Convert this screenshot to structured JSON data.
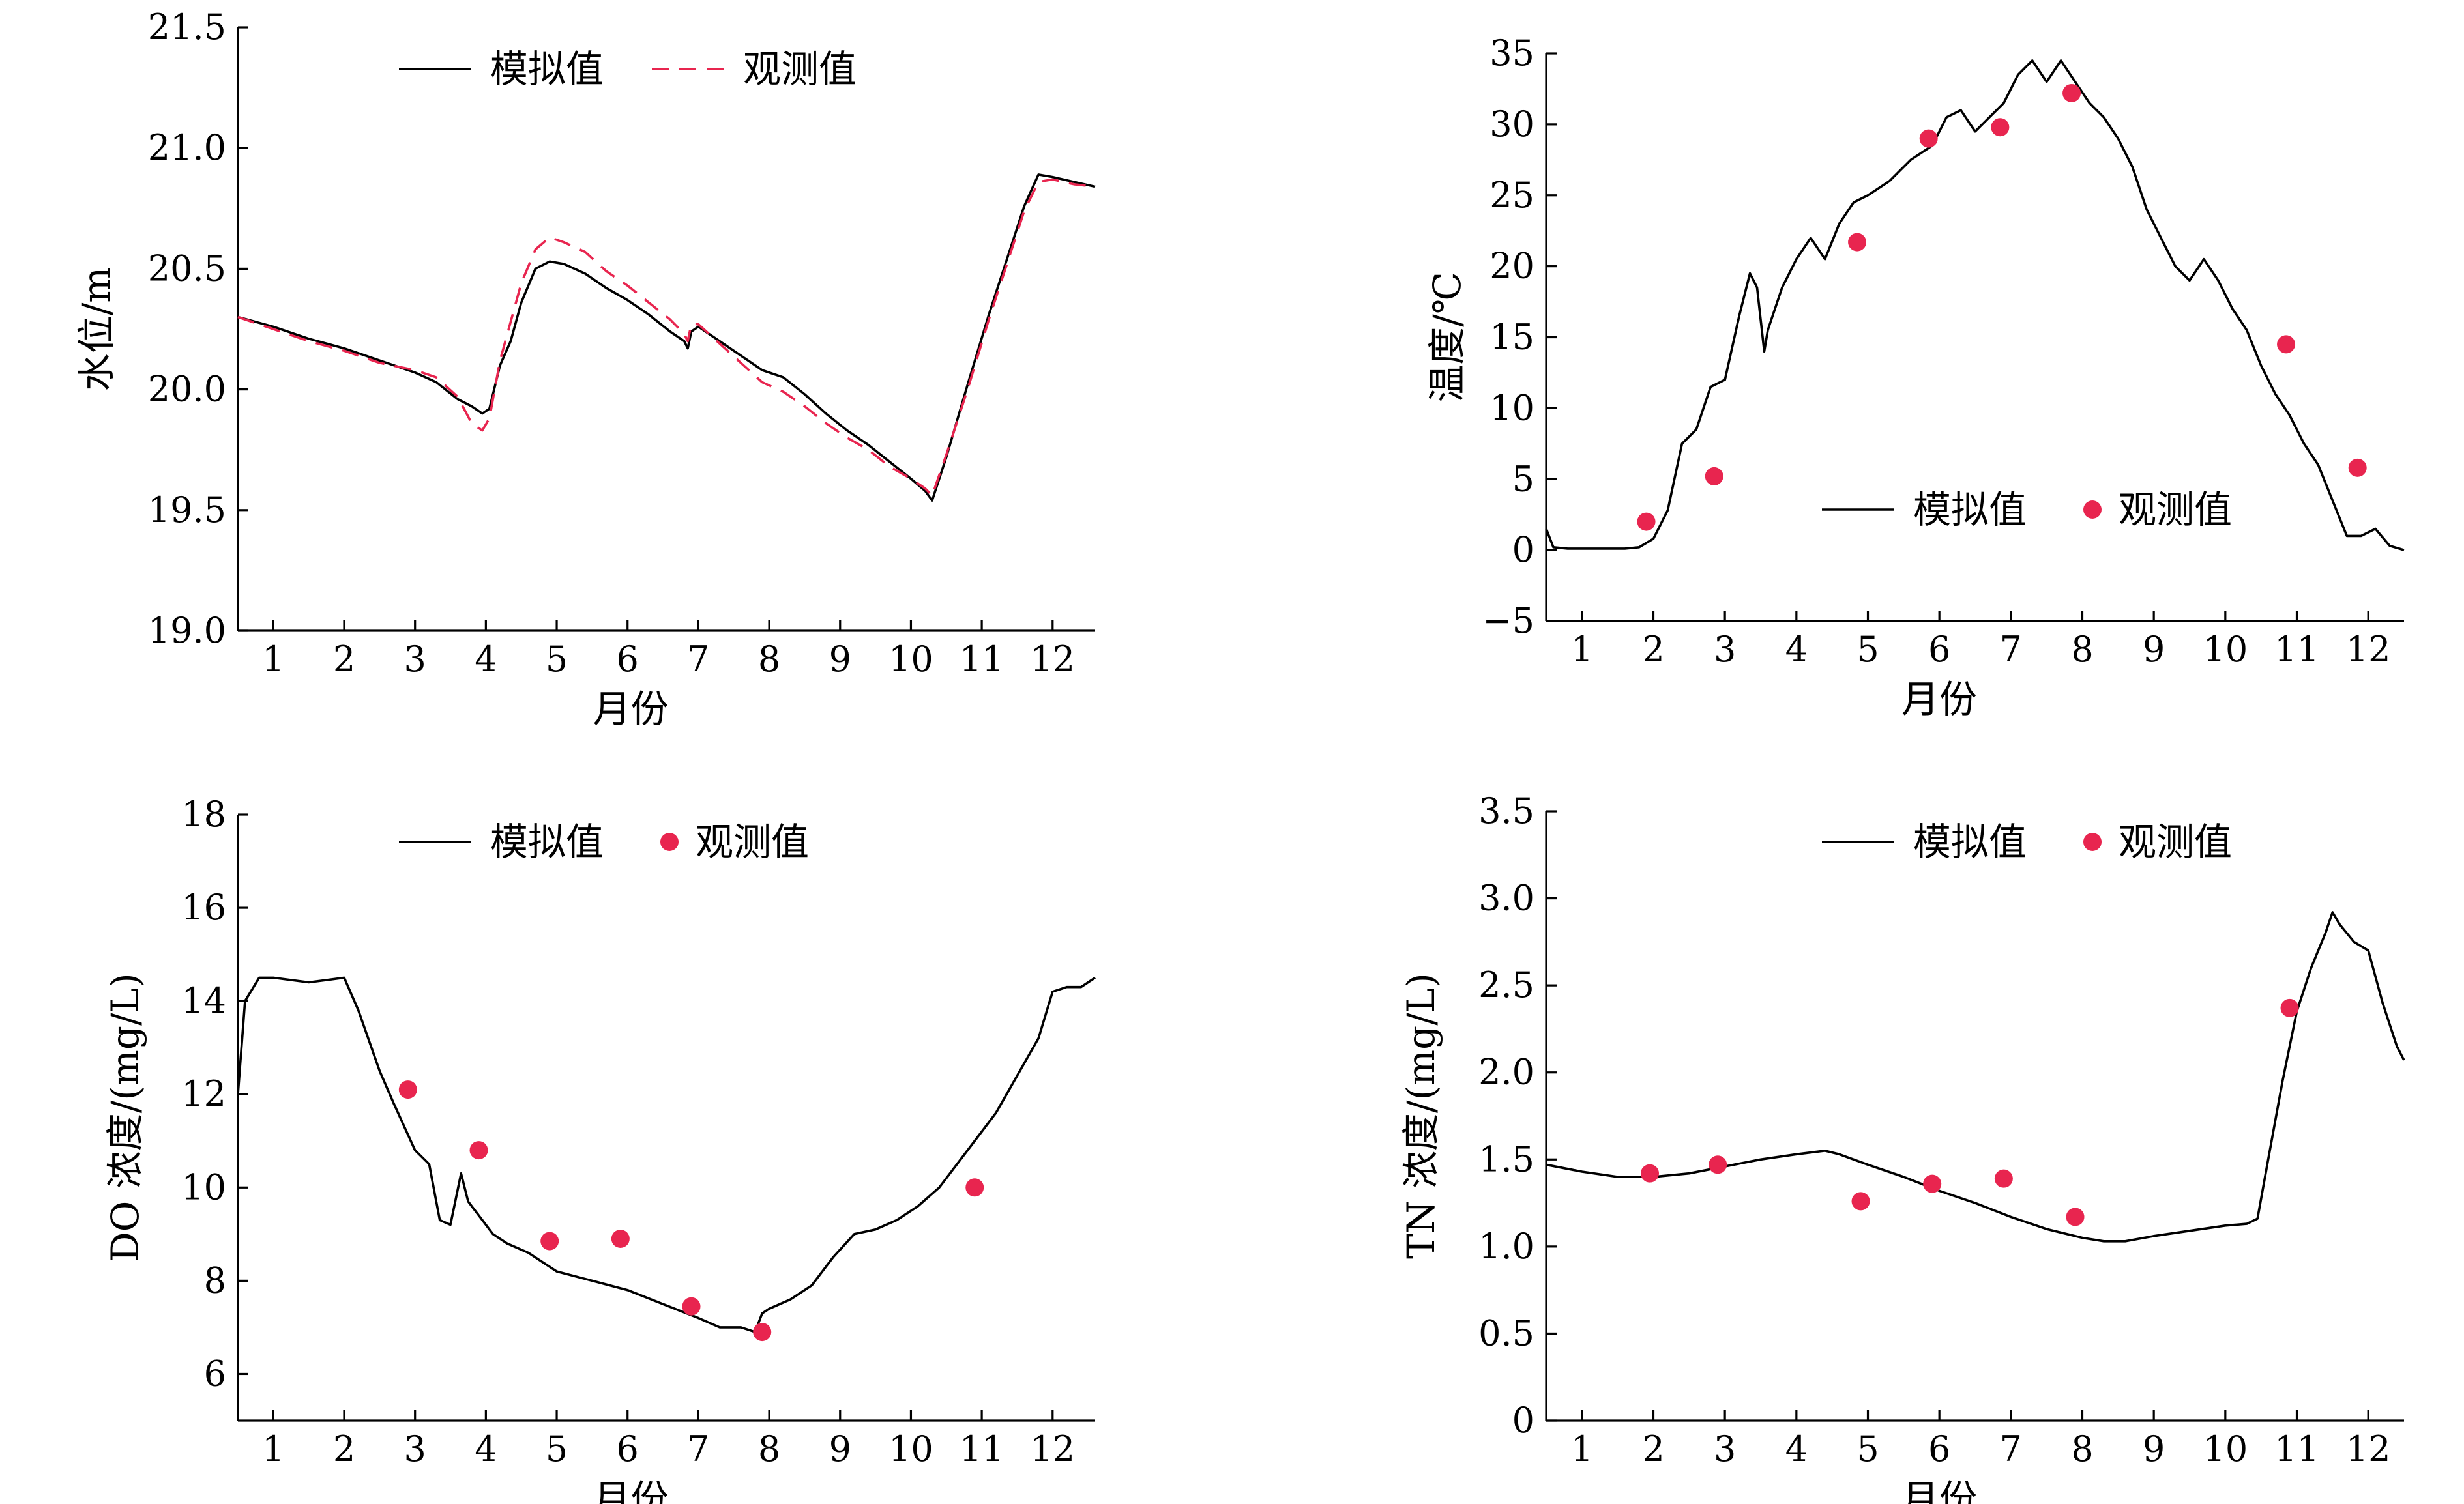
{
  "colors": {
    "simulated": "#000000",
    "observed": "#e8254f"
  },
  "chart_data": [
    {
      "id": "water-level",
      "type": "line",
      "ylabel": "水位/m",
      "xlabel": "月份",
      "ylim": [
        19.0,
        21.5
      ],
      "xlim": [
        0.5,
        12.6
      ],
      "yticks": [
        19.0,
        19.5,
        20.0,
        20.5,
        21.0,
        21.5
      ],
      "yticklabels": [
        "19.0",
        "19.5",
        "20.0",
        "20.5",
        "21.0",
        "21.5"
      ],
      "xticks": [
        1,
        2,
        3,
        4,
        5,
        6,
        7,
        8,
        9,
        10,
        11,
        12
      ],
      "xticklabels": [
        "1",
        "2",
        "3",
        "4",
        "5",
        "6",
        "7",
        "8",
        "9",
        "10",
        "11",
        "12"
      ],
      "legend": {
        "position": "top-center",
        "sim_label": "模拟值",
        "obs_label": "观测值",
        "obs_style": "dashed"
      },
      "series": [
        {
          "name": "模拟值",
          "style": "solid",
          "x": [
            0.5,
            1.0,
            1.5,
            2.0,
            2.5,
            3.0,
            3.3,
            3.6,
            3.8,
            3.95,
            4.05,
            4.2,
            4.35,
            4.5,
            4.7,
            4.9,
            5.1,
            5.4,
            5.7,
            6.0,
            6.3,
            6.6,
            6.8,
            6.85,
            6.9,
            7.0,
            7.3,
            7.6,
            7.9,
            8.2,
            8.5,
            8.8,
            9.1,
            9.4,
            9.7,
            10.0,
            10.2,
            10.3,
            10.5,
            10.8,
            11.1,
            11.4,
            11.6,
            11.8,
            12.0,
            12.3,
            12.6
          ],
          "y": [
            20.3,
            20.26,
            20.21,
            20.17,
            20.12,
            20.07,
            20.03,
            19.96,
            19.93,
            19.9,
            19.92,
            20.1,
            20.2,
            20.36,
            20.5,
            20.53,
            20.52,
            20.48,
            20.42,
            20.37,
            20.31,
            20.24,
            20.2,
            20.17,
            20.24,
            20.26,
            20.2,
            20.14,
            20.08,
            20.05,
            19.98,
            19.9,
            19.83,
            19.77,
            19.7,
            19.63,
            19.58,
            19.54,
            19.72,
            20.02,
            20.31,
            20.58,
            20.76,
            20.89,
            20.88,
            20.86,
            20.84
          ]
        },
        {
          "name": "观测值",
          "style": "dashed",
          "x": [
            0.5,
            1.0,
            1.5,
            2.0,
            2.5,
            3.0,
            3.3,
            3.6,
            3.8,
            3.95,
            4.05,
            4.2,
            4.35,
            4.5,
            4.7,
            4.9,
            5.1,
            5.4,
            5.7,
            6.0,
            6.3,
            6.6,
            6.8,
            6.85,
            6.9,
            7.0,
            7.3,
            7.6,
            7.9,
            8.2,
            8.5,
            8.8,
            9.1,
            9.4,
            9.7,
            10.0,
            10.2,
            10.3,
            10.5,
            10.8,
            11.1,
            11.4,
            11.6,
            11.8,
            12.0,
            12.3,
            12.6
          ],
          "y": [
            20.3,
            20.25,
            20.2,
            20.16,
            20.11,
            20.08,
            20.05,
            19.97,
            19.86,
            19.83,
            19.88,
            20.12,
            20.28,
            20.44,
            20.58,
            20.63,
            20.61,
            20.57,
            20.49,
            20.43,
            20.36,
            20.29,
            20.23,
            20.2,
            20.27,
            20.27,
            20.19,
            20.11,
            20.03,
            19.99,
            19.93,
            19.86,
            19.8,
            19.75,
            19.68,
            19.63,
            19.59,
            19.56,
            19.73,
            20.0,
            20.29,
            20.56,
            20.74,
            20.86,
            20.87,
            20.85,
            20.84
          ]
        }
      ]
    },
    {
      "id": "water-temperature",
      "type": "line",
      "ylabel": "温度/℃",
      "xlabel": "月份",
      "ylim": [
        -5,
        35
      ],
      "xlim": [
        0.5,
        12.5
      ],
      "yticks": [
        -5,
        0,
        5,
        10,
        15,
        20,
        25,
        30,
        35
      ],
      "yticklabels": [
        "−5",
        "0",
        "5",
        "10",
        "15",
        "20",
        "25",
        "30",
        "35"
      ],
      "xticks": [
        1,
        2,
        3,
        4,
        5,
        6,
        7,
        8,
        9,
        10,
        11,
        12
      ],
      "xticklabels": [
        "1",
        "2",
        "3",
        "4",
        "5",
        "6",
        "7",
        "8",
        "9",
        "10",
        "11",
        "12"
      ],
      "legend": {
        "position": "lower-right",
        "sim_label": "模拟值",
        "obs_label": "观测值",
        "obs_style": "dots"
      },
      "series": [
        {
          "name": "模拟值",
          "style": "solid",
          "x": [
            0.5,
            0.6,
            0.8,
            1.2,
            1.6,
            1.8,
            2.0,
            2.2,
            2.4,
            2.6,
            2.8,
            3.0,
            3.2,
            3.35,
            3.45,
            3.55,
            3.6,
            3.8,
            4.0,
            4.2,
            4.4,
            4.6,
            4.8,
            5.0,
            5.3,
            5.6,
            5.9,
            6.1,
            6.3,
            6.5,
            6.7,
            6.9,
            7.1,
            7.3,
            7.5,
            7.7,
            7.9,
            8.1,
            8.3,
            8.5,
            8.7,
            8.9,
            9.1,
            9.3,
            9.5,
            9.7,
            9.9,
            10.1,
            10.3,
            10.5,
            10.7,
            10.9,
            11.1,
            11.3,
            11.5,
            11.7,
            11.9,
            12.1,
            12.3,
            12.5
          ],
          "y": [
            1.5,
            0.2,
            0.1,
            0.1,
            0.1,
            0.2,
            0.8,
            2.8,
            7.5,
            8.5,
            11.5,
            12.0,
            16.5,
            19.5,
            18.5,
            14.0,
            15.5,
            18.5,
            20.5,
            22.0,
            20.5,
            23.0,
            24.5,
            25.0,
            26.0,
            27.5,
            28.5,
            30.5,
            31.0,
            29.5,
            30.5,
            31.5,
            33.5,
            34.5,
            33.0,
            34.5,
            33.0,
            31.5,
            30.5,
            29.0,
            27.0,
            24.0,
            22.0,
            20.0,
            19.0,
            20.5,
            19.0,
            17.0,
            15.5,
            13.0,
            11.0,
            9.5,
            7.5,
            6.0,
            3.5,
            1.0,
            1.0,
            1.5,
            0.3,
            0.0
          ]
        },
        {
          "name": "观测值",
          "style": "dots",
          "x": [
            1.9,
            2.85,
            4.85,
            5.85,
            6.85,
            7.85,
            10.85,
            11.85
          ],
          "y": [
            2.0,
            5.2,
            21.7,
            29.0,
            29.8,
            32.2,
            14.5,
            5.8
          ]
        }
      ]
    },
    {
      "id": "do-concentration",
      "type": "line",
      "ylabel": "DO 浓度/(mg/L)",
      "xlabel": "月份",
      "ylim": [
        5,
        18
      ],
      "xlim": [
        0.5,
        12.6
      ],
      "yticks": [
        6,
        8,
        10,
        12,
        14,
        16,
        18
      ],
      "yticklabels": [
        "6",
        "8",
        "10",
        "12",
        "14",
        "16",
        "18"
      ],
      "xticks": [
        1,
        2,
        3,
        4,
        5,
        6,
        7,
        8,
        9,
        10,
        11,
        12
      ],
      "xticklabels": [
        "1",
        "2",
        "3",
        "4",
        "5",
        "6",
        "7",
        "8",
        "9",
        "10",
        "11",
        "12"
      ],
      "legend": {
        "position": "top-center",
        "sim_label": "模拟值",
        "obs_label": "观测值",
        "obs_style": "dots"
      },
      "series": [
        {
          "name": "模拟值",
          "style": "solid",
          "x": [
            0.5,
            0.6,
            0.8,
            1.0,
            1.5,
            2.0,
            2.2,
            2.5,
            2.7,
            3.0,
            3.2,
            3.35,
            3.5,
            3.65,
            3.75,
            3.9,
            4.1,
            4.3,
            4.6,
            5.0,
            5.5,
            6.0,
            6.5,
            7.0,
            7.3,
            7.6,
            7.8,
            7.9,
            8.0,
            8.3,
            8.6,
            8.9,
            9.2,
            9.5,
            9.8,
            10.1,
            10.4,
            10.8,
            11.2,
            11.5,
            11.8,
            12.0,
            12.2,
            12.4,
            12.6
          ],
          "y": [
            12.0,
            14.0,
            14.5,
            14.5,
            14.4,
            14.5,
            13.8,
            12.5,
            11.8,
            10.8,
            10.5,
            9.3,
            9.2,
            10.3,
            9.7,
            9.4,
            9.0,
            8.8,
            8.6,
            8.2,
            8.0,
            7.8,
            7.5,
            7.2,
            7.0,
            7.0,
            6.9,
            7.3,
            7.4,
            7.6,
            7.9,
            8.5,
            9.0,
            9.1,
            9.3,
            9.6,
            10.0,
            10.8,
            11.6,
            12.4,
            13.2,
            14.2,
            14.3,
            14.3,
            14.5
          ]
        },
        {
          "name": "观测值",
          "style": "dots",
          "x": [
            2.9,
            3.9,
            4.9,
            5.9,
            6.9,
            7.9,
            10.9
          ],
          "y": [
            12.1,
            10.8,
            8.85,
            8.9,
            7.45,
            6.9,
            10.0
          ]
        }
      ]
    },
    {
      "id": "tn-concentration",
      "type": "line",
      "ylabel": "TN 浓度/(mg/L)",
      "xlabel": "月份",
      "ylim": [
        0,
        3.5
      ],
      "xlim": [
        0.5,
        12.5
      ],
      "yticks": [
        0,
        0.5,
        1.0,
        1.5,
        2.0,
        2.5,
        3.0,
        3.5
      ],
      "yticklabels": [
        "0",
        "0.5",
        "1.0",
        "1.5",
        "2.0",
        "2.5",
        "3.0",
        "3.5"
      ],
      "xticks": [
        1,
        2,
        3,
        4,
        5,
        6,
        7,
        8,
        9,
        10,
        11,
        12
      ],
      "xticklabels": [
        "1",
        "2",
        "3",
        "4",
        "5",
        "6",
        "7",
        "8",
        "9",
        "10",
        "11",
        "12"
      ],
      "legend": {
        "position": "top-center",
        "sim_label": "模拟值",
        "obs_label": "观测值",
        "obs_style": "dots"
      },
      "series": [
        {
          "name": "模拟值",
          "style": "solid",
          "x": [
            0.5,
            1.0,
            1.5,
            2.0,
            2.5,
            3.0,
            3.5,
            4.0,
            4.4,
            4.6,
            5.0,
            5.5,
            6.0,
            6.5,
            7.0,
            7.5,
            8.0,
            8.3,
            8.6,
            9.0,
            9.5,
            10.0,
            10.3,
            10.45,
            10.6,
            10.8,
            11.0,
            11.2,
            11.4,
            11.5,
            11.6,
            11.8,
            12.0,
            12.2,
            12.4,
            12.5
          ],
          "y": [
            1.47,
            1.43,
            1.4,
            1.4,
            1.42,
            1.46,
            1.5,
            1.53,
            1.55,
            1.53,
            1.47,
            1.4,
            1.32,
            1.25,
            1.17,
            1.1,
            1.05,
            1.03,
            1.03,
            1.06,
            1.09,
            1.12,
            1.13,
            1.16,
            1.5,
            1.95,
            2.35,
            2.6,
            2.8,
            2.92,
            2.85,
            2.75,
            2.7,
            2.4,
            2.15,
            2.07
          ]
        },
        {
          "name": "观测值",
          "style": "dots",
          "x": [
            1.95,
            2.9,
            4.9,
            5.9,
            6.9,
            7.9,
            10.9
          ],
          "y": [
            1.42,
            1.47,
            1.26,
            1.36,
            1.39,
            1.17,
            2.37
          ]
        }
      ]
    }
  ]
}
